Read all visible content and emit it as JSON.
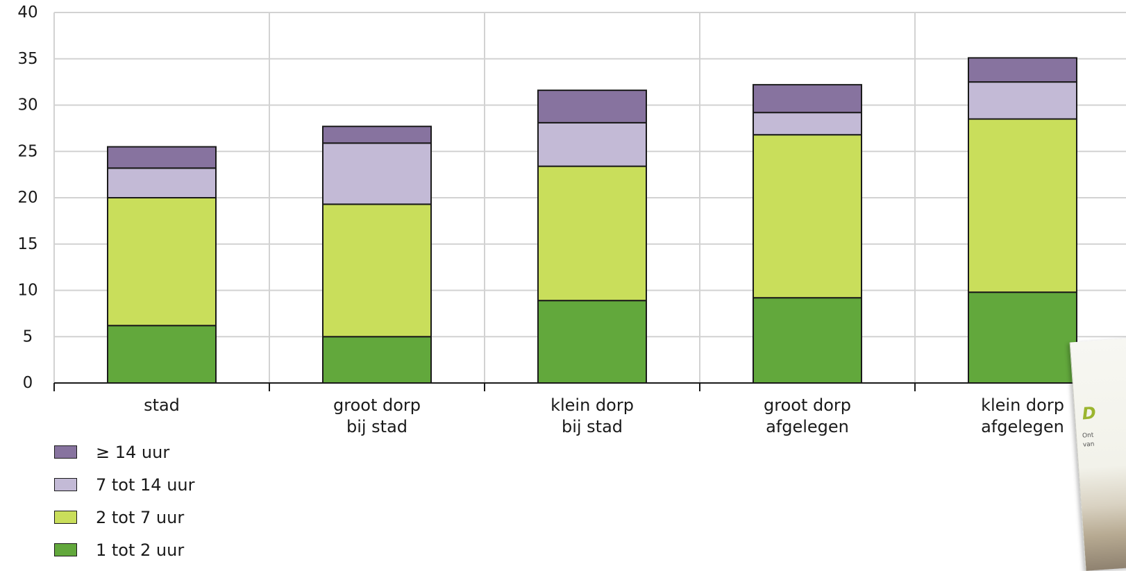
{
  "colors": {
    "c14plus": "#87739f",
    "c7to14": "#c3bad6",
    "c2to7": "#c9de5b",
    "c1to2": "#62a83c",
    "grid": "#d2d2d2",
    "axis": "#1a1a1a"
  },
  "chart_data": {
    "type": "bar",
    "stacked": true,
    "categories": [
      [
        "stad"
      ],
      [
        "groot dorp",
        "bij stad"
      ],
      [
        "klein dorp",
        "bij stad"
      ],
      [
        "groot dorp",
        "afgelegen"
      ],
      [
        "klein dorp",
        "afgelegen"
      ]
    ],
    "series": [
      {
        "name": "1 tot 2 uur",
        "color_key": "c1to2",
        "values": [
          6.2,
          5.0,
          8.9,
          9.2,
          9.8
        ]
      },
      {
        "name": "2 tot 7 uur",
        "color_key": "c2to7",
        "values": [
          13.8,
          14.3,
          14.5,
          17.6,
          18.7
        ]
      },
      {
        "name": "7 tot 14 uur",
        "color_key": "c7to14",
        "values": [
          3.2,
          6.6,
          4.7,
          2.4,
          4.0
        ]
      },
      {
        "name": "≥ 14 uur",
        "color_key": "c14plus",
        "values": [
          2.3,
          1.8,
          3.5,
          3.0,
          2.6
        ]
      }
    ],
    "ylim": [
      0,
      40
    ],
    "yticks": [
      0,
      5,
      10,
      15,
      20,
      25,
      30,
      35,
      40
    ],
    "ytick_labels": [
      "0",
      "5",
      "10",
      "15",
      "20",
      "25",
      "30",
      "35",
      "40"
    ],
    "xlabel": "",
    "ylabel": "",
    "grid": true,
    "legend_position": "bottom-left"
  },
  "legend": {
    "items": [
      {
        "label": "≥ 14 uur",
        "color_key": "c14plus"
      },
      {
        "label": "7 tot 14 uur",
        "color_key": "c7to14"
      },
      {
        "label": "2 tot 7 uur",
        "color_key": "c2to7"
      },
      {
        "label": "1 tot 2 uur",
        "color_key": "c1to2"
      }
    ]
  },
  "book": {
    "title": "D",
    "subtitle": "Ont\nvan"
  }
}
